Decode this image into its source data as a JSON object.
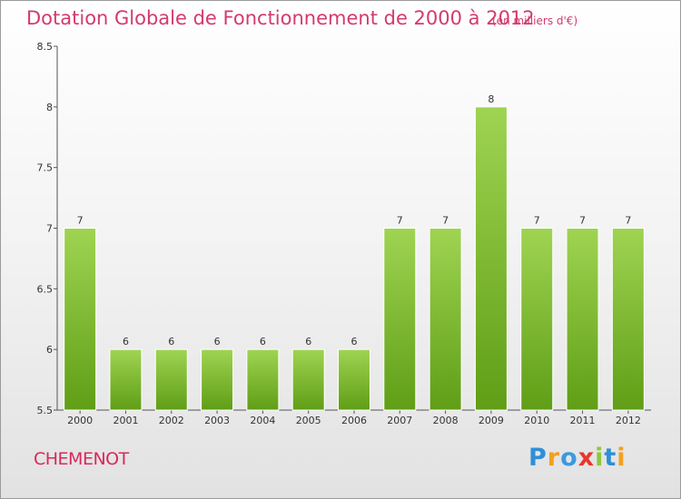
{
  "title": "Dotation Globale de Fonctionnement de 2000 à 2012",
  "subtitle": "(en milliers d'€)",
  "town": "CHEMENOT",
  "logo": [
    "P",
    "r",
    "o",
    "x",
    "i",
    "t",
    "i"
  ],
  "colors": {
    "title": "#d43a6e",
    "bar_top": "#9fd452",
    "bar_bottom": "#5f9e16"
  },
  "chart_data": {
    "type": "bar",
    "title": "Dotation Globale de Fonctionnement de 2000 à 2012",
    "categories": [
      "2000",
      "2001",
      "2002",
      "2003",
      "2004",
      "2005",
      "2006",
      "2007",
      "2008",
      "2009",
      "2010",
      "2011",
      "2012"
    ],
    "values": [
      7,
      6,
      6,
      6,
      6,
      6,
      6,
      7,
      7,
      8,
      7,
      7,
      7
    ],
    "data_labels": [
      "7",
      "6",
      "6",
      "6",
      "6",
      "6",
      "6",
      "7",
      "7",
      "8",
      "7",
      "7",
      "7"
    ],
    "yticks": [
      5.5,
      6,
      6.5,
      7,
      7.5,
      8,
      8.5
    ],
    "ytick_labels": [
      "5.5",
      "6",
      "6.5",
      "7",
      "7.5",
      "8",
      "8.5"
    ],
    "ylim": [
      5.5,
      8.5
    ],
    "xlabel": "",
    "ylabel": "",
    "grid": false,
    "legend": "none"
  }
}
